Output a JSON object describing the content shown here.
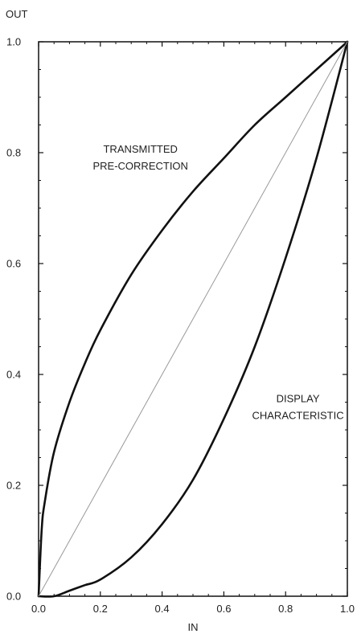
{
  "chart_data": {
    "type": "line",
    "title": "",
    "xlabel": "IN",
    "ylabel": "OUT",
    "xlim": [
      0.0,
      1.0
    ],
    "ylim": [
      0.0,
      1.0
    ],
    "grid": false,
    "x_ticks": [
      0.0,
      0.2,
      0.4,
      0.6,
      0.8,
      1.0
    ],
    "y_ticks": [
      0.0,
      0.2,
      0.4,
      0.6,
      0.8,
      1.0
    ],
    "x_tick_labels": [
      "0.0",
      "0.2",
      "0.4",
      "0.6",
      "0.8",
      "1.0"
    ],
    "y_tick_labels": [
      "0.0",
      "0.2",
      "0.4",
      "0.6",
      "0.8",
      "1.0"
    ],
    "x_minor_step": 0.05,
    "y_minor_step": 0.05,
    "series": [
      {
        "x": [
          0.0,
          0.01,
          0.02,
          0.05,
          0.1,
          0.15,
          0.2,
          0.3,
          0.4,
          0.5,
          0.6,
          0.7,
          0.8,
          0.9,
          1.0
        ],
        "y": [
          0.0,
          0.12,
          0.17,
          0.26,
          0.35,
          0.42,
          0.48,
          0.58,
          0.66,
          0.73,
          0.79,
          0.85,
          0.9,
          0.95,
          1.0
        ],
        "color": "#111111",
        "style": "thick"
      },
      {
        "x": [
          0.0,
          0.05,
          0.1,
          0.15,
          0.2,
          0.3,
          0.4,
          0.5,
          0.6,
          0.7,
          0.8,
          0.9,
          1.0
        ],
        "y": [
          0.0,
          0.0,
          0.01,
          0.02,
          0.03,
          0.07,
          0.13,
          0.21,
          0.32,
          0.45,
          0.61,
          0.79,
          1.0
        ],
        "color": "#111111",
        "style": "thick"
      },
      {
        "x": [
          0.0,
          1.0
        ],
        "y": [
          0.0,
          1.0
        ],
        "color": "#999999",
        "style": "thin"
      }
    ],
    "annotations": [
      {
        "lines": [
          "TRANSMITTED",
          "PRE-CORRECTION"
        ],
        "x": 0.33,
        "y": 0.8
      },
      {
        "lines": [
          "DISPLAY",
          "CHARACTERISTIC"
        ],
        "x": 0.84,
        "y": 0.35
      }
    ]
  }
}
